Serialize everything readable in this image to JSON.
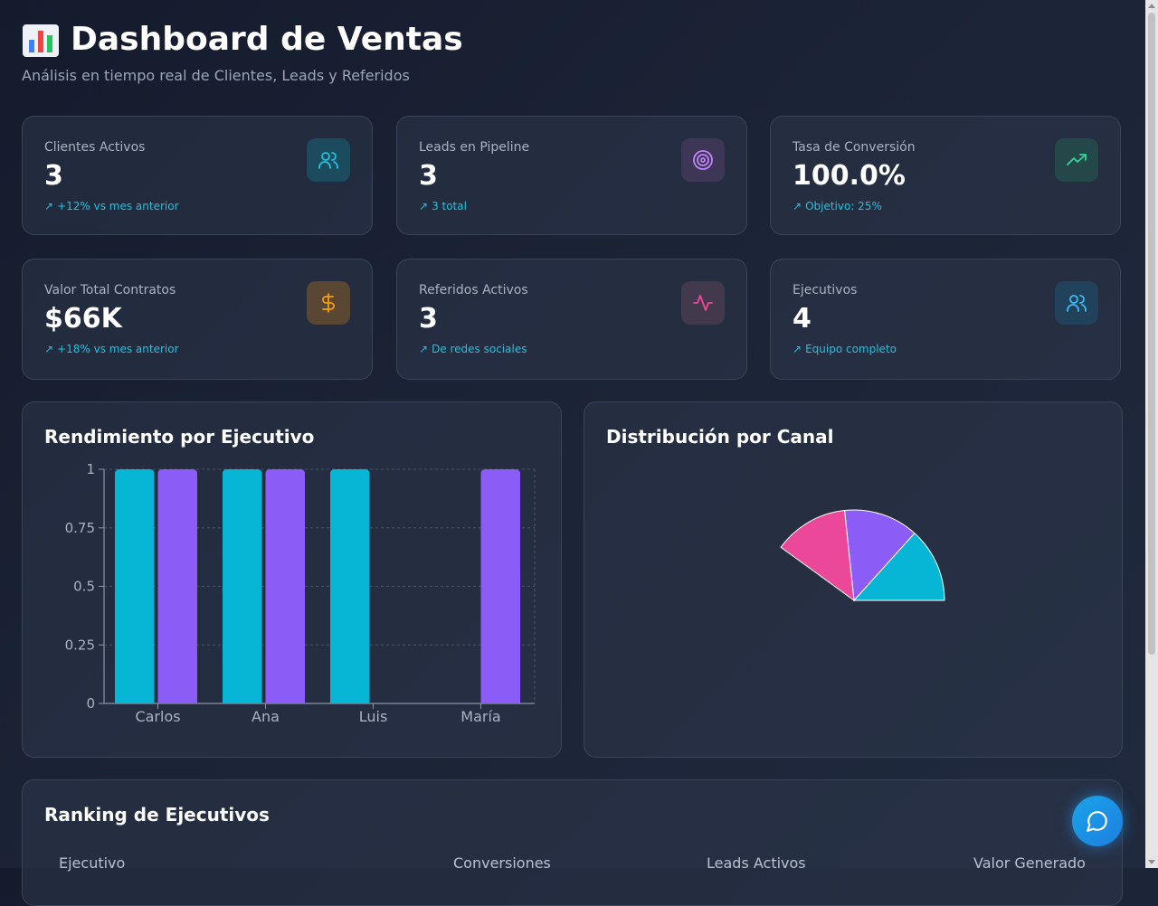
{
  "header": {
    "title": "Dashboard de Ventas",
    "subtitle": "Análisis en tiempo real de Clientes, Leads y Referidos",
    "title_icon": "bar-chart-emoji"
  },
  "stats": [
    {
      "label": "Clientes Activos",
      "value": "3",
      "note": "+12% vs mes anterior",
      "icon": "users-icon",
      "color": "#22c1dd"
    },
    {
      "label": "Leads en Pipeline",
      "value": "3",
      "note": "3 total",
      "icon": "target-icon",
      "color": "#a855f7"
    },
    {
      "label": "Tasa de Conversión",
      "value": "100.0%",
      "note": "Objetivo: 25%",
      "icon": "trending-up-icon",
      "color": "#34d399"
    },
    {
      "label": "Valor Total Contratos",
      "value": "$66K",
      "note": "+18% vs mes anterior",
      "icon": "dollar-icon",
      "color": "#f59e0b"
    },
    {
      "label": "Referidos Activos",
      "value": "3",
      "note": "De redes sociales",
      "icon": "activity-icon",
      "color": "#ec4899"
    },
    {
      "label": "Ejecutivos",
      "value": "4",
      "note": "Equipo completo",
      "icon": "users-icon",
      "color": "#38bdf8"
    }
  ],
  "performance": {
    "title": "Rendimiento por Ejecutivo"
  },
  "distribution": {
    "title": "Distribución por Canal"
  },
  "chart_data": [
    {
      "type": "bar",
      "categories": [
        "Carlos",
        "Ana",
        "Luis",
        "María"
      ],
      "series": [
        {
          "values": [
            1,
            1,
            1,
            0
          ],
          "color": "#06b6d4"
        },
        {
          "values": [
            1,
            1,
            0,
            1
          ],
          "color": "#8b5cf6"
        }
      ],
      "yticks": [
        "0",
        "0.25",
        "0.5",
        "0.75",
        "1"
      ],
      "ylim": [
        0,
        1
      ],
      "grid": true
    },
    {
      "type": "pie",
      "values": [
        1,
        1,
        1
      ],
      "colors": [
        "#06b6d4",
        "#8b5cf6",
        "#ec4899"
      ]
    }
  ],
  "ranking": {
    "title": "Ranking de Ejecutivos",
    "columns": [
      "Ejecutivo",
      "Conversiones",
      "Leads Activos",
      "Valor Generado"
    ]
  }
}
